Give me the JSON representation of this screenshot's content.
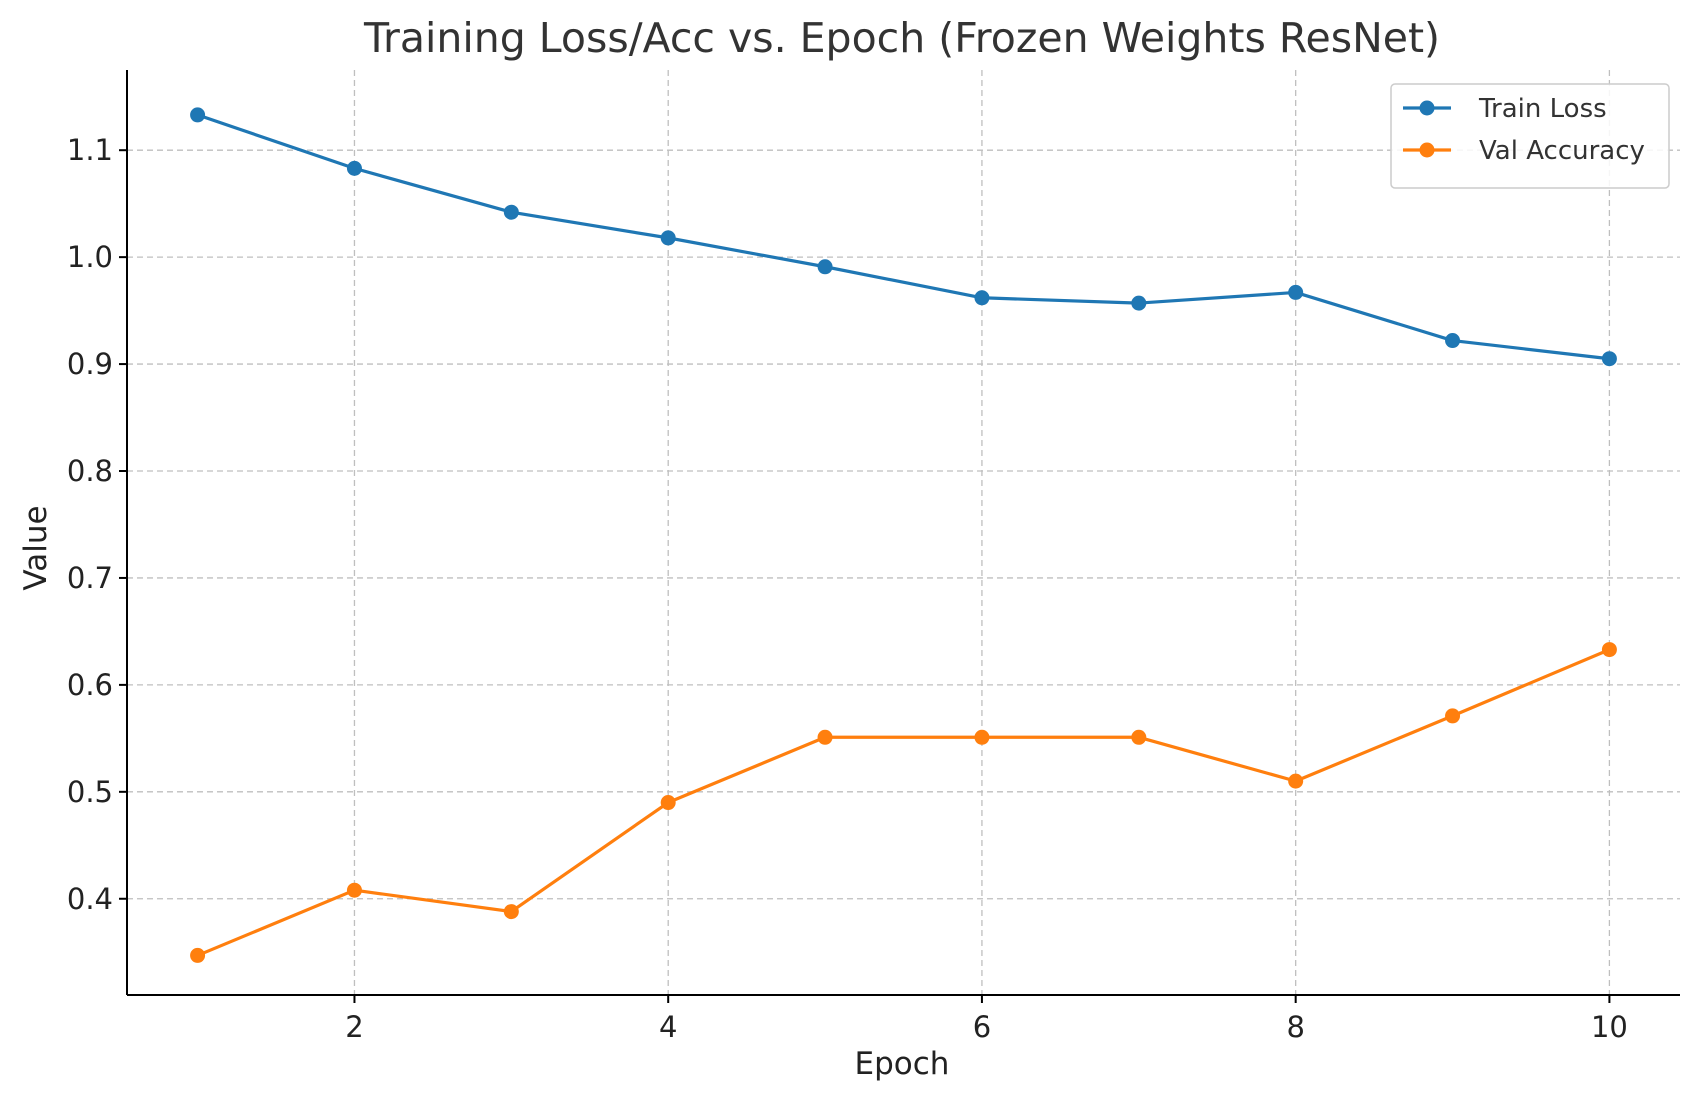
{
  "chart_data": {
    "type": "line",
    "title": "Training Loss/Acc vs. Epoch (Frozen Weights ResNet)",
    "xlabel": "Epoch",
    "ylabel": "Value",
    "x": [
      1,
      2,
      3,
      4,
      5,
      6,
      7,
      8,
      9,
      10
    ],
    "xlim": [
      0.55,
      10.45
    ],
    "ylim": [
      0.31,
      1.175
    ],
    "xticks": [
      2,
      4,
      6,
      8,
      10
    ],
    "xtick_labels": [
      "2",
      "4",
      "6",
      "8",
      "10"
    ],
    "yticks": [
      0.4,
      0.5,
      0.6,
      0.7,
      0.8,
      0.9,
      1.0,
      1.1
    ],
    "ytick_labels": [
      "0.4",
      "0.5",
      "0.6",
      "0.7",
      "0.8",
      "0.9",
      "1.0",
      "1.1"
    ],
    "grid": true,
    "legend_position": "top-right",
    "series": [
      {
        "name": "Train Loss",
        "color": "#1f77b4",
        "marker": "circle",
        "values": [
          1.133,
          1.083,
          1.042,
          1.018,
          0.991,
          0.962,
          0.957,
          0.967,
          0.922,
          0.905
        ]
      },
      {
        "name": "Val Accuracy",
        "color": "#ff7f0e",
        "marker": "circle",
        "values": [
          0.347,
          0.408,
          0.388,
          0.49,
          0.551,
          0.551,
          0.551,
          0.51,
          0.571,
          0.633
        ]
      }
    ]
  }
}
